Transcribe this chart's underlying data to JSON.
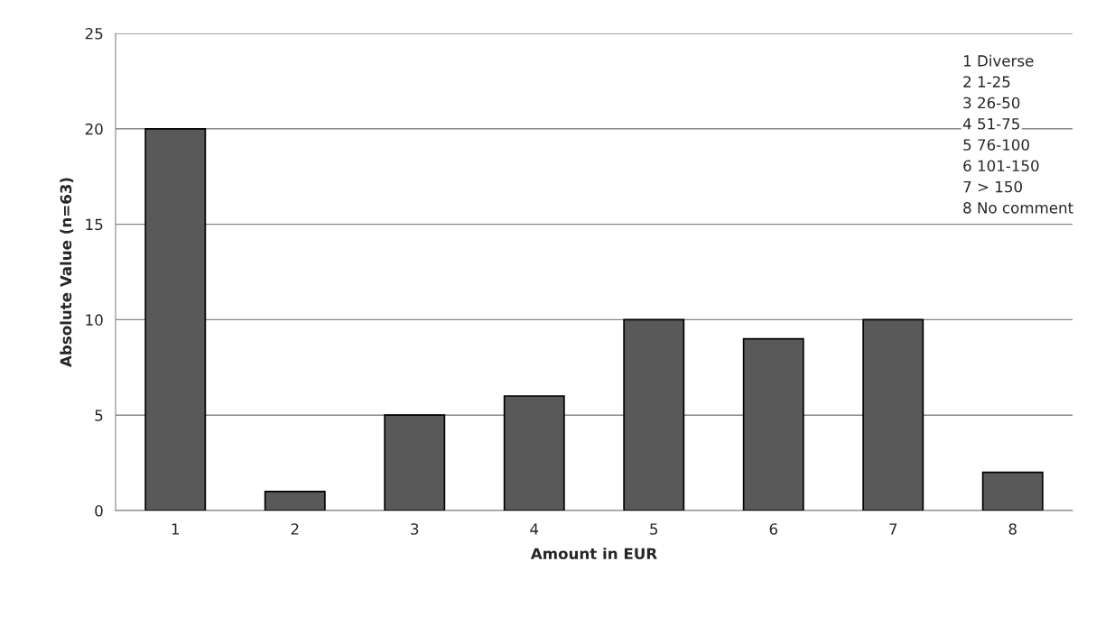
{
  "chart_data": {
    "type": "bar",
    "xlabel": "Amount in EUR",
    "ylabel": "Absolute Value (n=63)",
    "categories": [
      "1",
      "2",
      "3",
      "4",
      "5",
      "6",
      "7",
      "8"
    ],
    "values": [
      20,
      1,
      5,
      6,
      10,
      9,
      10,
      2
    ],
    "color": "#595959",
    "ylim": [
      0,
      25
    ],
    "yticks": [
      0,
      5,
      10,
      15,
      20,
      25
    ],
    "grid": "y",
    "annotations": [
      "1 Diverse",
      "2 1-25",
      "3 26-50",
      "4 51-75",
      "5 76-100",
      "6 101-150",
      "7 > 150",
      "8 No comment"
    ]
  }
}
